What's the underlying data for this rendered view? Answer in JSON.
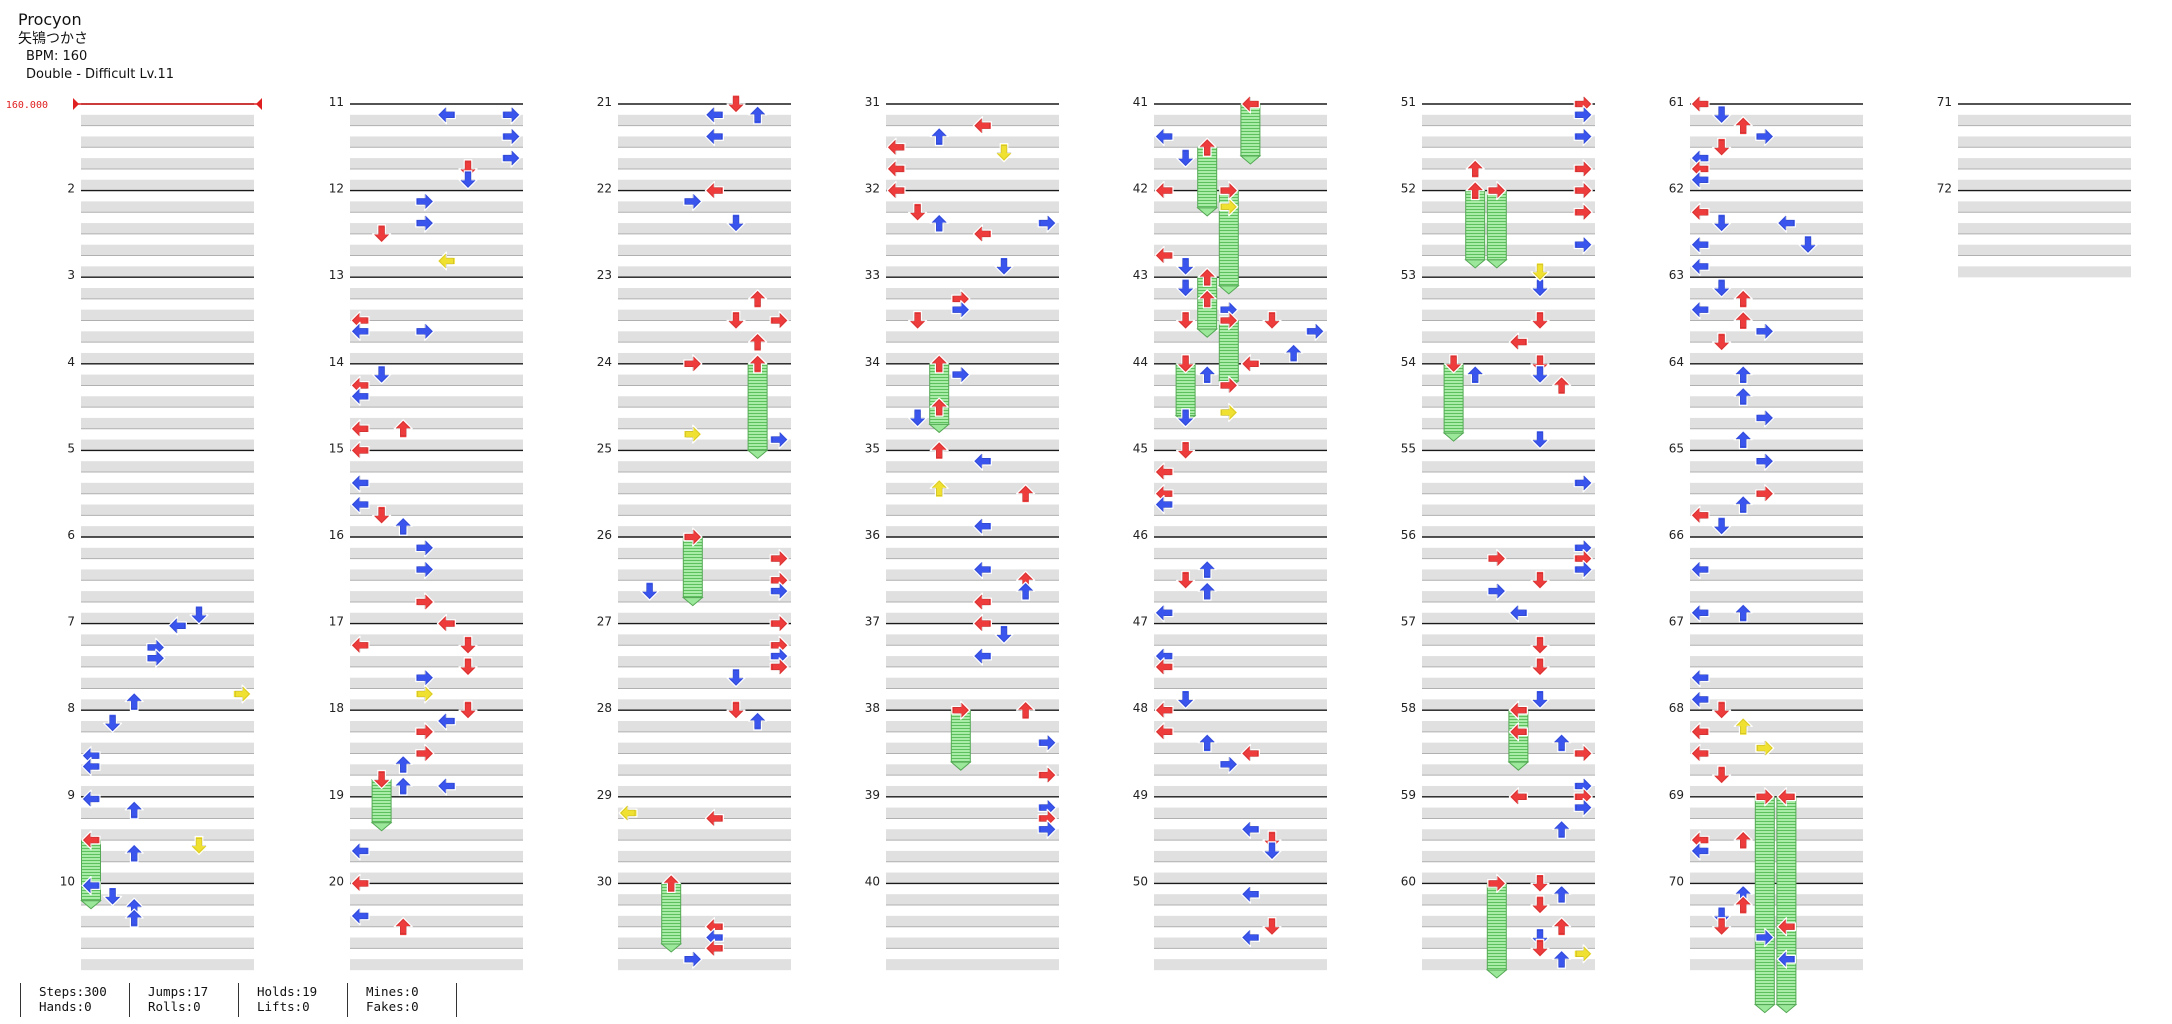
{
  "song": {
    "title": "Procyon",
    "artist": "矢鴇つかさ",
    "bpm_label": "BPM: 160",
    "difficulty_label": "Double - Difficult  Lv.11"
  },
  "bpm_marker": "160.000",
  "measure_labels": [
    "2",
    "3",
    "4",
    "5",
    "6",
    "7",
    "8",
    "9",
    "10",
    "11",
    "12",
    "13",
    "14",
    "15",
    "16",
    "17",
    "18",
    "19",
    "20",
    "21",
    "22",
    "23",
    "24",
    "25",
    "26",
    "27",
    "28",
    "29",
    "30",
    "31",
    "32",
    "33",
    "34",
    "35",
    "36",
    "37",
    "38",
    "39",
    "40",
    "41",
    "42",
    "43",
    "44",
    "45",
    "46",
    "47",
    "48",
    "49",
    "50",
    "51",
    "52",
    "53",
    "54",
    "55",
    "56",
    "57",
    "58",
    "59",
    "60",
    "61",
    "62",
    "63",
    "64",
    "65",
    "66",
    "67",
    "68",
    "69",
    "70",
    "71",
    "72"
  ],
  "stats": {
    "steps": "Steps:300",
    "hands": "Hands:0",
    "jumps": "Jumps:17",
    "rolls": "Rolls:0",
    "holds": "Holds:19",
    "lifts": "Lifts:0",
    "mines": "Mines:0",
    "fakes": "Fakes:0"
  },
  "colors": {
    "quarter_note": "#ee3b3b",
    "eighth_note": "#3a55ee",
    "sixteenth_note": "#f0e030",
    "hold_body": "#9be89b",
    "bpm_line": "#e02020",
    "stripe": "#e0e0e0"
  },
  "icons": {
    "note": "arrow-icon",
    "hold": "hold-note-icon"
  }
}
